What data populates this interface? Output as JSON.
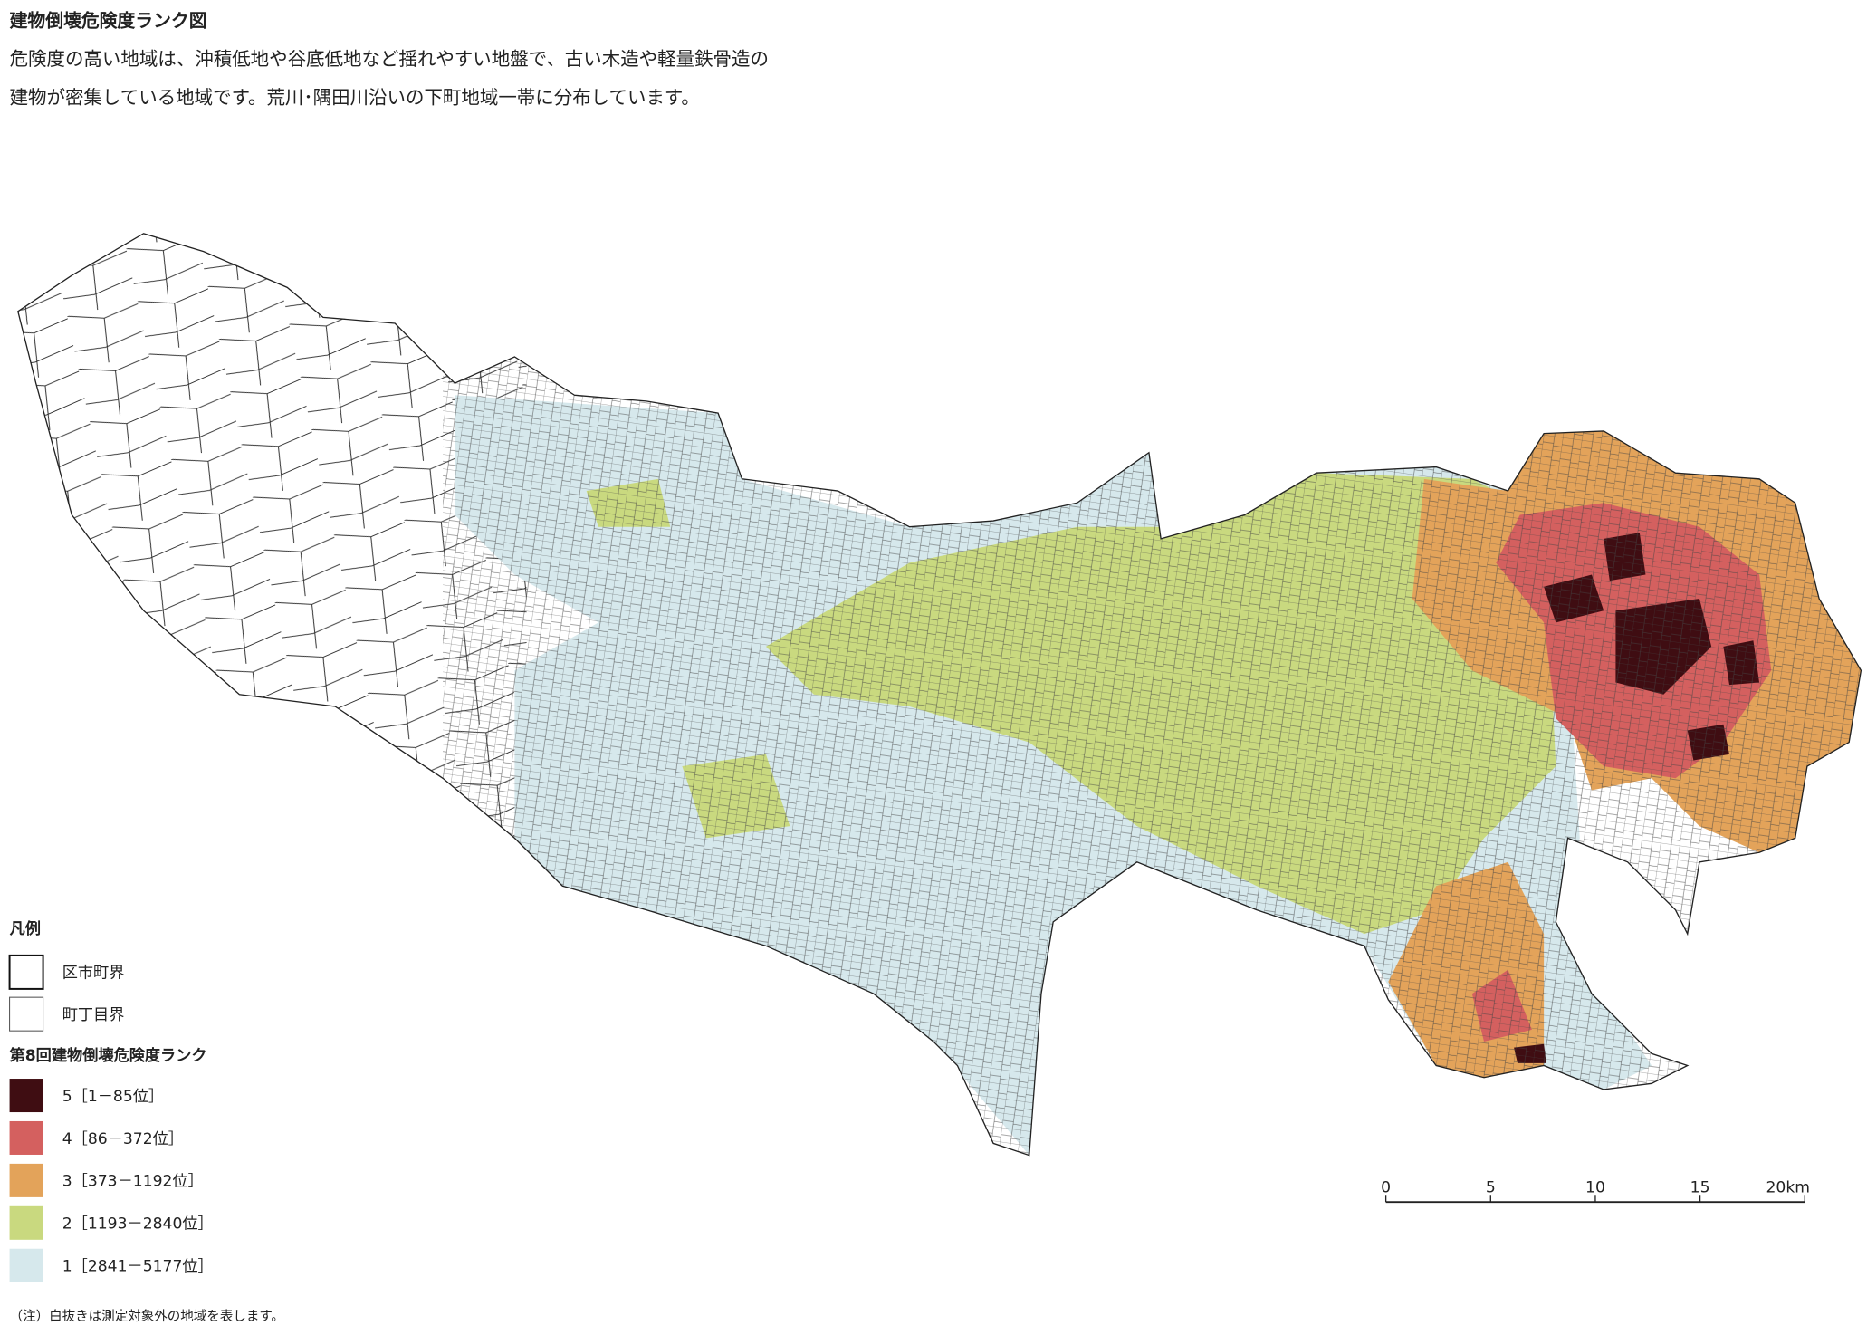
{
  "header": {
    "title": "建物倒壊危険度ランク図",
    "description": [
      "危険度の高い地域は、沖積低地や谷底低地など揺れやすい地盤で、古い木造や軽量鉄骨造の",
      "建物が密集している地域です。荒川･隅田川沿いの下町地域一帯に分布しています。"
    ]
  },
  "legend": {
    "title": "凡例",
    "boundaries": [
      {
        "label": "区市町界"
      },
      {
        "label": "町丁目界"
      }
    ],
    "rank_title": "第8回建物倒壊危険度ランク",
    "ranks": [
      {
        "label": "5［1－85位］",
        "color": "#3f0d12"
      },
      {
        "label": "4［86－372位］",
        "color": "#d4605f"
      },
      {
        "label": "3［373－1192位］",
        "color": "#e3a35a"
      },
      {
        "label": "2［1193－2840位］",
        "color": "#c9d97f"
      },
      {
        "label": "1［2841－5177位］",
        "color": "#d6e8ec"
      }
    ]
  },
  "scale_bar": {
    "labels": [
      "0",
      "5",
      "10",
      "15",
      "20km"
    ]
  },
  "note": "（注）白抜きは測定対象外の地域を表します。"
}
